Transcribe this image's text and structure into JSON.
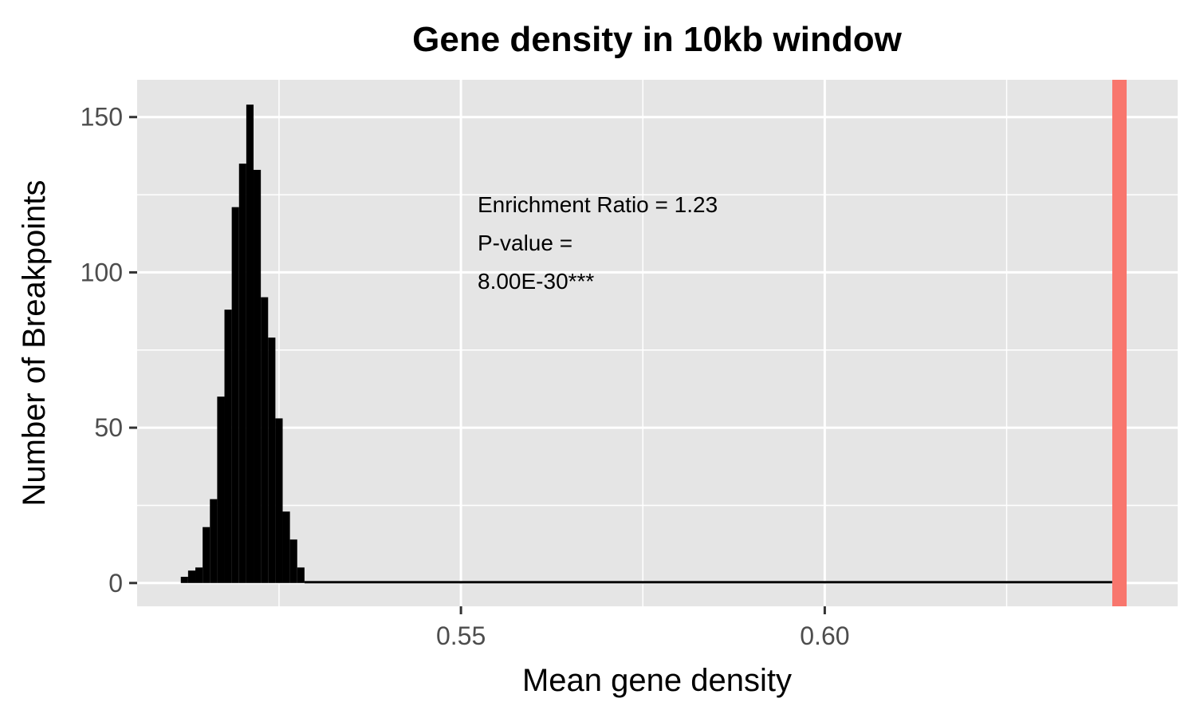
{
  "chart_data": {
    "type": "bar",
    "title": "Gene density in 10kb window",
    "xlabel": "Mean gene density",
    "ylabel": "Number of Breakpoints",
    "xlim": [
      0.5055,
      0.6485
    ],
    "ylim": [
      -7.5,
      162
    ],
    "x_ticks": [
      0.55,
      0.6
    ],
    "x_tick_labels": [
      "0.55",
      "0.60"
    ],
    "y_ticks": [
      0,
      50,
      100,
      150
    ],
    "y_tick_labels": [
      "0",
      "50",
      "100",
      "150"
    ],
    "grid": true,
    "bin_width": 0.001,
    "bins": [
      {
        "x": 0.512,
        "count": 2
      },
      {
        "x": 0.513,
        "count": 4
      },
      {
        "x": 0.514,
        "count": 5
      },
      {
        "x": 0.515,
        "count": 18
      },
      {
        "x": 0.516,
        "count": 27
      },
      {
        "x": 0.517,
        "count": 60
      },
      {
        "x": 0.518,
        "count": 88
      },
      {
        "x": 0.519,
        "count": 121
      },
      {
        "x": 0.52,
        "count": 135
      },
      {
        "x": 0.521,
        "count": 154
      },
      {
        "x": 0.522,
        "count": 133
      },
      {
        "x": 0.523,
        "count": 92
      },
      {
        "x": 0.524,
        "count": 79
      },
      {
        "x": 0.525,
        "count": 53
      },
      {
        "x": 0.526,
        "count": 23
      },
      {
        "x": 0.527,
        "count": 14
      },
      {
        "x": 0.528,
        "count": 5
      }
    ],
    "zero_range": [
      0.5285,
      0.6395
    ],
    "observed_value": 0.6405,
    "observed_color": "#F8766D",
    "bar_color": "#000000",
    "annotation_lines": [
      "Enrichment Ratio = 1.23",
      "P-value =",
      "8.00E-30***"
    ]
  }
}
